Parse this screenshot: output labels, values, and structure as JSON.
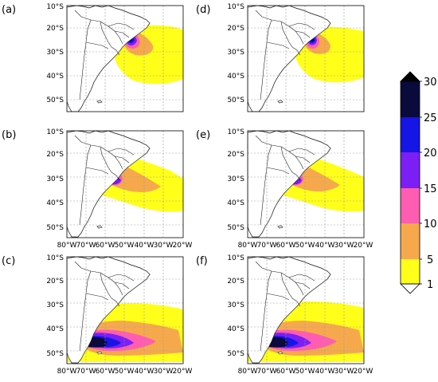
{
  "figure": {
    "panels": [
      {
        "label": "(a)"
      },
      {
        "label": "(b)"
      },
      {
        "label": "(c)"
      },
      {
        "label": "(d)"
      },
      {
        "label": "(e)"
      },
      {
        "label": "(f)"
      }
    ],
    "lat_ticks": [
      "10°S",
      "20°S",
      "30°S",
      "40°S",
      "50°S"
    ],
    "lon_ticks": [
      "80°W",
      "70°W",
      "60°W",
      "50°W",
      "40°W",
      "30°W",
      "20°W"
    ],
    "colorbar": {
      "labels": [
        "30",
        "25",
        "20",
        "15",
        "10",
        "5",
        "1"
      ],
      "colors": [
        "#0a0a3c",
        "#1515e6",
        "#7b1ff5",
        "#ff5db1",
        "#f6a94c",
        "#ffff1a"
      ]
    },
    "shading_colors": {
      "yellow": "#ffff1a",
      "orange": "#f6a94c",
      "pink": "#ff5db1",
      "purple": "#7b1ff5",
      "blue": "#1515e6",
      "navy": "#0a0a3c"
    }
  }
}
